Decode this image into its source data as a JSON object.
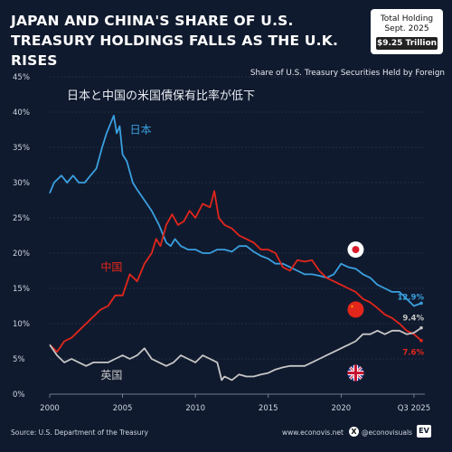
{
  "header": {
    "title": "JAPAN AND CHINA'S SHARE OF U.S. TREASURY HOLDINGS FALLS AS THE U.K. RISES",
    "holding_line1": "Total Holding",
    "holding_line2": "Sept. 2025",
    "holding_value": "$9.25 Trillion",
    "subtitle": "Share of U.S. Treasury Securities Held by Foreign",
    "jp_title": "日本と中国の米国債保有比率が低下"
  },
  "footer": {
    "source": "Source: U.S. Department of the Treasury",
    "website": "www.econovis.net",
    "x_glyph": "X",
    "handle": "@econovisuals",
    "logo": "EV"
  },
  "colors": {
    "background": "#101a2e",
    "japan": "#3aa0e0",
    "china": "#e3261b",
    "uk": "#c6c6c6",
    "grid": "#3a4558"
  },
  "chart_data": {
    "type": "line",
    "title": "Share of U.S. Treasury Securities Held by Foreign",
    "xlabel": "",
    "ylabel": "",
    "xlim": [
      2000,
      2025.75
    ],
    "ylim": [
      0,
      45
    ],
    "grid": true,
    "x_ticks": [
      {
        "value": 2000,
        "label": "2000"
      },
      {
        "value": 2005,
        "label": "2005"
      },
      {
        "value": 2010,
        "label": "2010"
      },
      {
        "value": 2015,
        "label": "2015"
      },
      {
        "value": 2020,
        "label": "2020"
      },
      {
        "value": 2025,
        "label": "Q3 2025"
      }
    ],
    "y_ticks": [
      0,
      5,
      10,
      15,
      20,
      25,
      30,
      35,
      40,
      45
    ],
    "y_tick_labels": [
      "0%",
      "5%",
      "10%",
      "15%",
      "20%",
      "25%",
      "30%",
      "35%",
      "40%",
      "45%"
    ],
    "series": [
      {
        "name": "日本",
        "key": "japan",
        "end_label": "12.9%",
        "x": [
          2000,
          2000.3,
          2000.8,
          2001.2,
          2001.6,
          2002,
          2002.4,
          2002.8,
          2003.2,
          2003.6,
          2003.9,
          2004.2,
          2004.4,
          2004.6,
          2004.8,
          2005,
          2005.3,
          2005.7,
          2006,
          2006.5,
          2007,
          2007.5,
          2008,
          2008.3,
          2008.6,
          2009,
          2009.5,
          2010,
          2010.5,
          2011,
          2011.5,
          2012,
          2012.5,
          2013,
          2013.5,
          2014,
          2014.5,
          2015,
          2015.5,
          2016,
          2016.5,
          2017,
          2017.5,
          2018,
          2018.5,
          2019,
          2019.5,
          2020,
          2020.5,
          2021,
          2021.5,
          2022,
          2022.5,
          2023,
          2023.5,
          2024,
          2024.5,
          2025,
          2025.5
        ],
        "y": [
          28.5,
          30,
          31,
          30,
          31,
          30,
          30,
          31,
          32,
          35,
          37,
          38.5,
          39.5,
          37,
          38,
          34,
          33,
          30,
          29,
          27.5,
          26,
          24,
          21.5,
          21,
          22,
          21,
          20.5,
          20.5,
          20,
          20,
          20.5,
          20.5,
          20.2,
          21,
          21,
          20.2,
          19.6,
          19.2,
          18.5,
          18.5,
          18,
          17.5,
          17,
          17,
          16.8,
          16.5,
          17,
          18.5,
          18,
          17.8,
          17,
          16.5,
          15.5,
          15,
          14.5,
          14.5,
          13.5,
          12.5,
          12.9
        ]
      },
      {
        "name": "中国",
        "key": "china",
        "end_label": "7.6%",
        "x": [
          2000,
          2000.5,
          2001,
          2001.5,
          2002,
          2002.5,
          2003,
          2003.5,
          2004,
          2004.5,
          2005,
          2005.5,
          2006,
          2006.5,
          2007,
          2007.3,
          2007.6,
          2008,
          2008.4,
          2008.8,
          2009.2,
          2009.6,
          2010,
          2010.5,
          2011,
          2011.3,
          2011.6,
          2012,
          2012.5,
          2013,
          2013.5,
          2014,
          2014.5,
          2015,
          2015.5,
          2016,
          2016.5,
          2017,
          2017.5,
          2018,
          2018.5,
          2019,
          2019.5,
          2020,
          2020.5,
          2021,
          2021.5,
          2022,
          2022.5,
          2023,
          2023.5,
          2024,
          2024.5,
          2025,
          2025.5
        ],
        "y": [
          7,
          6,
          7.5,
          8,
          9,
          10,
          11,
          12,
          12.5,
          14,
          14,
          17,
          16,
          18.5,
          20,
          22,
          21,
          24,
          25.5,
          24,
          24.5,
          26,
          25,
          27,
          26.5,
          28.8,
          25,
          24,
          23.5,
          22.5,
          22,
          21.5,
          20.5,
          20.5,
          20,
          18,
          17.5,
          19,
          18.8,
          19,
          17.5,
          16.5,
          16,
          15.5,
          15,
          14.5,
          13.5,
          13,
          12.2,
          11.3,
          10.8,
          10,
          9,
          8.5,
          7.6
        ]
      },
      {
        "name": "英国",
        "key": "uk",
        "end_label": "9.4%",
        "x": [
          2000,
          2000.5,
          2001,
          2001.5,
          2002,
          2002.5,
          2003,
          2003.5,
          2004,
          2004.5,
          2005,
          2005.5,
          2006,
          2006.5,
          2007,
          2007.5,
          2008,
          2008.5,
          2009,
          2009.5,
          2010,
          2010.5,
          2011,
          2011.5,
          2011.8,
          2012,
          2012.5,
          2013,
          2013.5,
          2014,
          2014.5,
          2015,
          2015.5,
          2016,
          2016.5,
          2017,
          2017.5,
          2018,
          2018.5,
          2019,
          2019.5,
          2020,
          2020.5,
          2021,
          2021.5,
          2022,
          2022.5,
          2023,
          2023.5,
          2024,
          2024.5,
          2025,
          2025.5
        ],
        "y": [
          7,
          5.5,
          4.5,
          5,
          4.5,
          4,
          4.5,
          4.5,
          4.5,
          5,
          5.5,
          5,
          5.5,
          6.5,
          5,
          4.5,
          4,
          4.5,
          5.5,
          5,
          4.5,
          5.5,
          5,
          4.5,
          2,
          2.5,
          2,
          2.8,
          2.5,
          2.5,
          2.8,
          3,
          3.5,
          3.8,
          4,
          4,
          4,
          4.5,
          5,
          5.5,
          6,
          6.5,
          7,
          7.5,
          8.5,
          8.5,
          9,
          8.5,
          9,
          9,
          8.5,
          8.7,
          9.4
        ]
      }
    ],
    "annotations": [
      {
        "text": "日本",
        "series": "japan"
      },
      {
        "text": "中国",
        "series": "china"
      },
      {
        "text": "英国",
        "series": "uk"
      }
    ]
  }
}
